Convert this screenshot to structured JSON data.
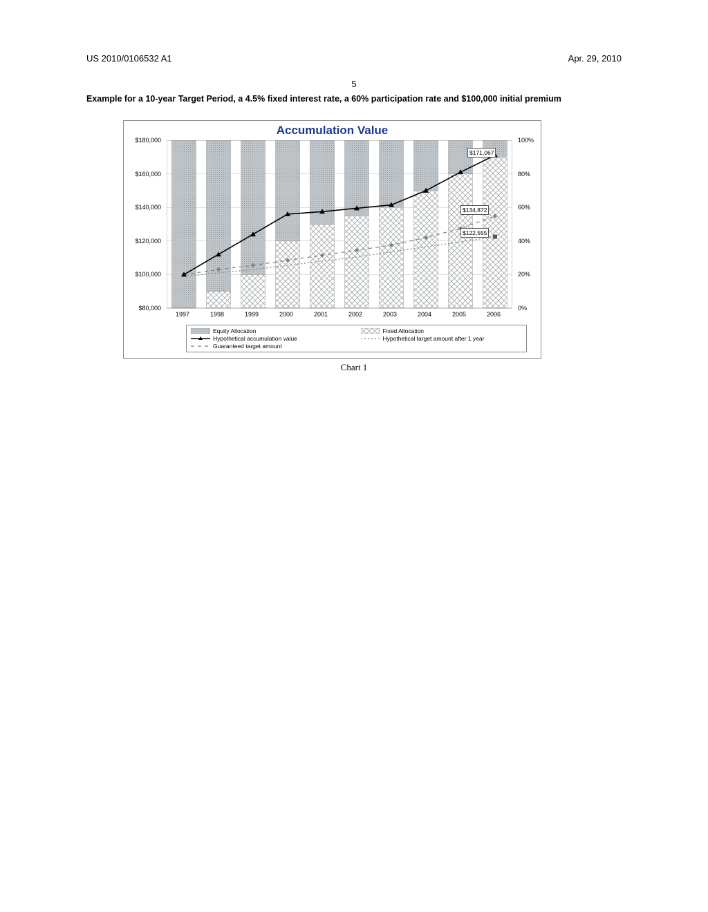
{
  "header": {
    "patent_number": "US 2010/0106532 A1",
    "date": "Apr. 29, 2010",
    "page": "5"
  },
  "title": "Example for a 10-year Target Period, a 4.5% fixed interest rate, a 60% participation rate and $100,000 initial premium",
  "caption": "Chart 1",
  "chart": {
    "title": "Accumulation Value",
    "years": [
      "1997",
      "1998",
      "1999",
      "2000",
      "2001",
      "2002",
      "2003",
      "2004",
      "2005",
      "2006"
    ],
    "y_left": {
      "min": 80000,
      "max": 180000,
      "step": 20000,
      "labels": [
        "$80,000",
        "$100,000",
        "$120,000",
        "$140,000",
        "$160,000",
        "$180,000"
      ]
    },
    "y_right": {
      "min": 0,
      "max": 100,
      "step": 20,
      "labels": [
        "0%",
        "20%",
        "40%",
        "60%",
        "80%",
        "100%"
      ]
    },
    "equity_allocation": [
      100,
      90,
      80,
      60,
      50,
      45,
      40,
      30,
      20,
      10
    ],
    "fixed_allocation": [
      0,
      10,
      20,
      40,
      50,
      55,
      60,
      70,
      80,
      90
    ],
    "hypothetical_accumulation": [
      100000,
      112000,
      124000,
      136000,
      137500,
      139500,
      141500,
      150000,
      161000,
      171067
    ],
    "guaranteed_target": [
      100000,
      103000,
      105500,
      108500,
      111500,
      114500,
      117500,
      122000,
      127500,
      134872
    ],
    "target_after_1yr": [
      99000,
      101000,
      103000,
      105500,
      108000,
      110500,
      113500,
      116500,
      119500,
      122555
    ],
    "value_labels": [
      {
        "text": "$171,067",
        "year_index": 8.6,
        "value": 172000
      },
      {
        "text": "$134,872",
        "year_index": 8.4,
        "value": 138000
      },
      {
        "text": "$122,555",
        "year_index": 8.4,
        "value": 124500
      }
    ],
    "colors": {
      "equity_fill": "#bfc5c9",
      "fixed_fill": "#ffffff",
      "fixed_pattern": "#a0a6aa",
      "line_accum": "#000000",
      "line_guaranteed": "#808080",
      "line_target1yr": "#808080",
      "gridline": "#bbbbbb",
      "plot_border": "#000000"
    },
    "legend": {
      "equity": "Equity Allocation",
      "fixed": "Fixed Allocation",
      "accum": "Hypothetical accumulation value",
      "target1": "Hypothetical target amount after 1 year",
      "guaranteed": "Guaranteed target amount"
    }
  }
}
